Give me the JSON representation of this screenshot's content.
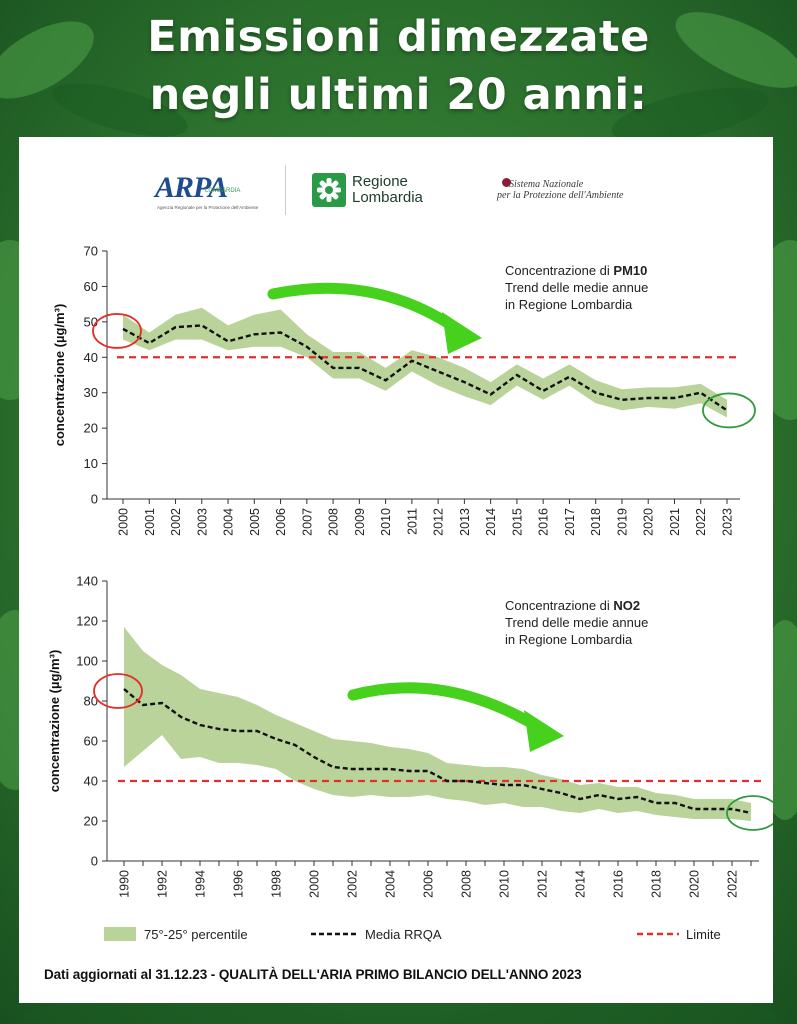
{
  "header": {
    "line1": "Emissioni dimezzate",
    "line2": "negli ultimi 20 anni:"
  },
  "logos": {
    "arpa_main": "ARPA",
    "arpa_sub": "LOMBARDIA",
    "arpa_tag": "Agenzia Regionale per la Protezione dell'Ambiente",
    "rl_line1": "Regione",
    "rl_line2": "Lombardia",
    "snpa_line1": "Sistema Nazionale",
    "snpa_line2": "per la Protezione dell'Ambiente"
  },
  "colors": {
    "band": "#b9d39a",
    "mean": "#111111",
    "limit": "#e0302a",
    "circle_red": "#e0302a",
    "circle_green": "#2e9a3c",
    "arrow": "#46d11c",
    "background": "#2e7d32"
  },
  "legend": {
    "band": "75°-25° percentile",
    "mean": "Media RRQA",
    "limit": "Limite"
  },
  "footer": "Dati aggiornati al 31.12.23 - QUALITÀ DELL'ARIA PRIMO BILANCIO DELL'ANNO 2023",
  "chart_data": [
    {
      "type": "area",
      "title_prefix": "Concentrazione di ",
      "title_bold": "PM10",
      "subtitle_line1": "Trend delle medie annue",
      "subtitle_line2": "in Regione Lombardia",
      "ylabel": "concentrazione (µg/m³)",
      "ylim": [
        0,
        70
      ],
      "yticks": [
        0,
        10,
        20,
        30,
        40,
        50,
        60,
        70
      ],
      "x": [
        2000,
        2001,
        2002,
        2003,
        2004,
        2005,
        2006,
        2007,
        2008,
        2009,
        2010,
        2011,
        2012,
        2013,
        2014,
        2015,
        2016,
        2017,
        2018,
        2019,
        2020,
        2021,
        2022,
        2023
      ],
      "xtick_labels": [
        "2000",
        "2001",
        "2002",
        "2003",
        "2004",
        "2005",
        "2006",
        "2007",
        "2008",
        "2009",
        "2010",
        "2011",
        "2012",
        "2013",
        "2014",
        "2015",
        "2016",
        "2017",
        "2018",
        "2019",
        "2020",
        "2021",
        "2022",
        "2023"
      ],
      "limit": 40,
      "series": [
        {
          "name": "Media RRQA",
          "values": [
            48,
            44,
            48.5,
            49,
            44.5,
            46.5,
            47,
            43,
            37,
            37,
            33.5,
            39,
            36,
            33,
            29.5,
            35,
            30.5,
            34.5,
            30,
            28,
            28.5,
            28.5,
            30,
            25
          ]
        },
        {
          "name": "75° percentile",
          "values": [
            52,
            47,
            52,
            54,
            49,
            52,
            53.5,
            46.5,
            41.5,
            41.5,
            37,
            42,
            40,
            37,
            33,
            38,
            34,
            38,
            33.5,
            31,
            31.5,
            31.5,
            32.5,
            28
          ]
        },
        {
          "name": "25° percentile",
          "values": [
            45,
            42,
            45,
            45,
            42,
            43,
            43,
            40,
            34,
            34,
            30.5,
            36,
            32,
            29,
            26.5,
            32,
            28,
            32,
            27,
            25,
            26,
            25.5,
            27,
            23
          ]
        }
      ]
    },
    {
      "type": "area",
      "title_prefix": "Concentrazione di ",
      "title_bold": "NO2",
      "subtitle_line1": "Trend delle medie annue",
      "subtitle_line2": "in Regione Lombardia",
      "ylabel": "concentrazione (µg/m³)",
      "ylim": [
        0,
        140
      ],
      "yticks": [
        0,
        20,
        40,
        60,
        80,
        100,
        120,
        140
      ],
      "x": [
        1990,
        1991,
        1992,
        1993,
        1994,
        1995,
        1996,
        1997,
        1998,
        1999,
        2000,
        2001,
        2002,
        2003,
        2004,
        2005,
        2006,
        2007,
        2008,
        2009,
        2010,
        2011,
        2012,
        2013,
        2014,
        2015,
        2016,
        2017,
        2018,
        2019,
        2020,
        2021,
        2022,
        2023
      ],
      "xtick_labels": [
        "1990",
        "1992",
        "1994",
        "1996",
        "1998",
        "2000",
        "2002",
        "2004",
        "2006",
        "2008",
        "2010",
        "2012",
        "2014",
        "2016",
        "2018",
        "2020",
        "2022"
      ],
      "limit": 40,
      "series": [
        {
          "name": "Media RRQA",
          "values": [
            86,
            78,
            79,
            72,
            68,
            66,
            65,
            65,
            61,
            58,
            52,
            47,
            46,
            46,
            46,
            45,
            45,
            40,
            40,
            39,
            38,
            38,
            36,
            34,
            31,
            33,
            31,
            32,
            29,
            29,
            26,
            26,
            26,
            24
          ]
        },
        {
          "name": "75° percentile",
          "values": [
            117,
            105,
            98,
            93,
            86,
            84,
            82,
            78,
            73,
            69,
            65,
            61,
            60,
            59,
            57,
            56,
            54,
            49,
            48,
            47,
            47,
            46,
            43,
            41,
            38,
            39,
            37,
            37,
            34,
            33,
            31,
            31,
            31,
            29
          ]
        },
        {
          "name": "25° percentile",
          "values": [
            47,
            55,
            63,
            51,
            52,
            49,
            49,
            48,
            46,
            40,
            36,
            33,
            32,
            33,
            32,
            32,
            33,
            31,
            30,
            28,
            29,
            27,
            27,
            25,
            24,
            26,
            24,
            25,
            23,
            22,
            21,
            21,
            21,
            20
          ]
        }
      ]
    }
  ]
}
